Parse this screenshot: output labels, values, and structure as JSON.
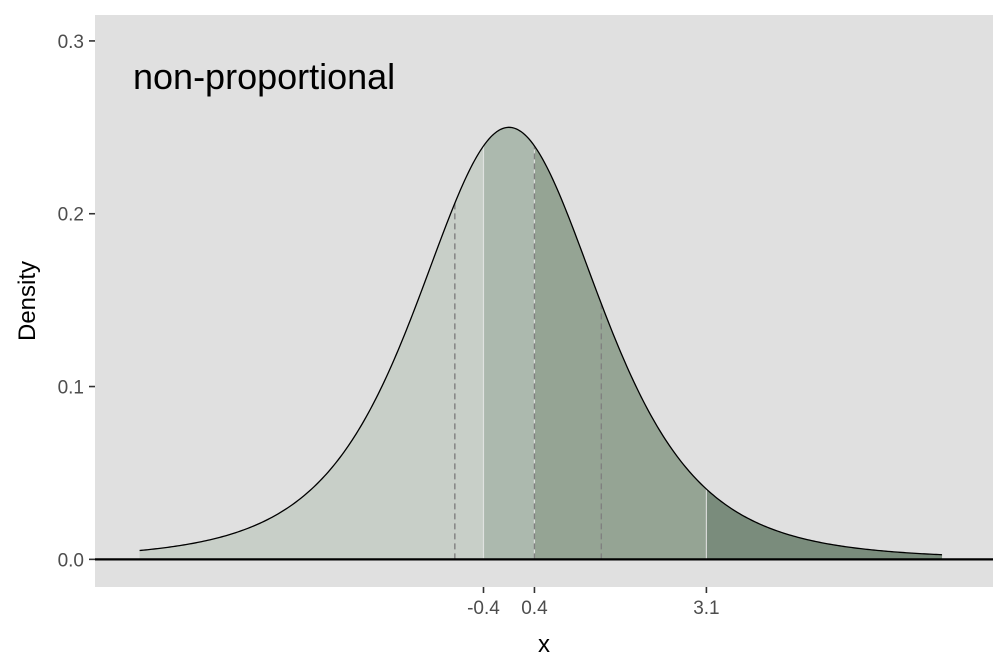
{
  "chart_data": {
    "type": "area",
    "title": "",
    "annotation": "non-proportional",
    "xlabel": "x",
    "ylabel": "Density",
    "xlim": [
      -6.5,
      7.6
    ],
    "ylim": [
      -0.016,
      0.315
    ],
    "y_ticks": [
      0.0,
      0.1,
      0.2,
      0.3
    ],
    "y_tick_labels": [
      "0.0",
      "0.1",
      "0.2",
      "0.3"
    ],
    "x_ticks": [
      -0.4,
      0.4,
      3.1
    ],
    "x_tick_labels": [
      "-0.4",
      "0.4",
      "3.1"
    ],
    "distribution": {
      "family": "t",
      "df": 4,
      "location": 0.0,
      "scale": 1.5
    },
    "curve_x_range": [
      -5.8,
      6.8
    ],
    "fill_breaks": [
      -0.4,
      0.4,
      3.1
    ],
    "band_colors": [
      "#c8cfc8",
      "#acb9ae",
      "#95a494",
      "#7a8c7c"
    ],
    "dashed_lines_x": [
      -0.85,
      0.4,
      1.45
    ],
    "colors": {
      "panel_bg": "#e0e0e0",
      "curve": "#000000",
      "baseline": "#000000",
      "band_divider": "#e8e8e8",
      "dashed": "#808080"
    }
  }
}
